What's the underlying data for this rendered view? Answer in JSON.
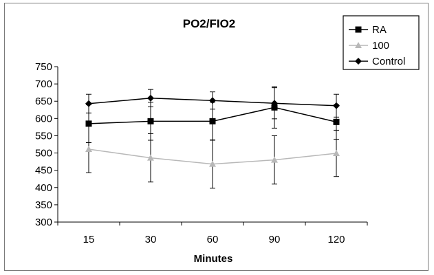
{
  "chart_data": {
    "type": "line",
    "title": "PO2/FIO2",
    "xlabel": "Minutes",
    "ylabel": "",
    "categories": [
      "15",
      "30",
      "60",
      "90",
      "120"
    ],
    "ylim": [
      300,
      750
    ],
    "yticks": [
      "300",
      "350",
      "400",
      "450",
      "500",
      "550",
      "600",
      "650",
      "700",
      "750"
    ],
    "grid": false,
    "legend_position": "top-right",
    "series": [
      {
        "name": "RA",
        "marker": "square",
        "color": "#000000",
        "values": [
          585,
          592,
          592,
          632,
          590
        ],
        "errors": [
          55,
          55,
          55,
          60,
          50
        ]
      },
      {
        "name": "100",
        "marker": "triangle",
        "color": "#b8b8b8",
        "values": [
          511,
          486,
          468,
          480,
          499
        ],
        "errors": [
          68,
          70,
          70,
          70,
          67
        ]
      },
      {
        "name": "Control",
        "marker": "diamond",
        "color": "#000000",
        "values": [
          643,
          659,
          652,
          644,
          637
        ],
        "errors": [
          27,
          25,
          25,
          45,
          33
        ]
      }
    ]
  }
}
